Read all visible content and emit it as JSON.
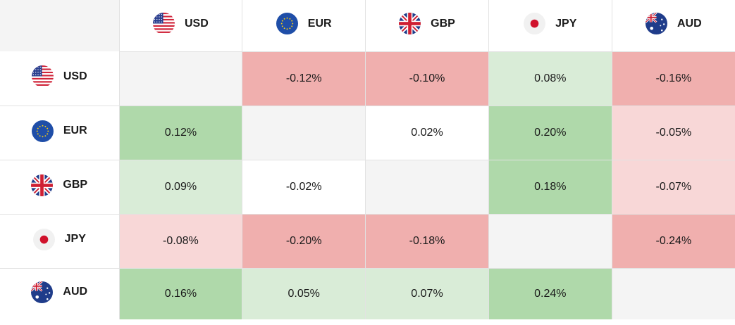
{
  "currencies": [
    {
      "code": "USD",
      "icon": "us-flag-icon"
    },
    {
      "code": "EUR",
      "icon": "eu-flag-icon"
    },
    {
      "code": "GBP",
      "icon": "uk-flag-icon"
    },
    {
      "code": "JPY",
      "icon": "japan-flag-icon"
    },
    {
      "code": "AUD",
      "icon": "australia-flag-icon"
    }
  ],
  "colors": {
    "empty": "#f4f4f4",
    "neutral": "#ffffff",
    "positive_light": "#d9ecd7",
    "positive_strong": "#afd9aa",
    "negative_light": "#f8d7d7",
    "negative_strong": "#f0afae"
  },
  "chart_data": {
    "type": "heatmap",
    "rows": [
      "USD",
      "EUR",
      "GBP",
      "JPY",
      "AUD"
    ],
    "columns": [
      "USD",
      "EUR",
      "GBP",
      "JPY",
      "AUD"
    ],
    "cells": [
      [
        "",
        "-0.12%",
        "-0.10%",
        "0.08%",
        "-0.16%"
      ],
      [
        "0.12%",
        "",
        "0.02%",
        "0.20%",
        "-0.05%"
      ],
      [
        "0.09%",
        "-0.02%",
        "",
        "0.18%",
        "-0.07%"
      ],
      [
        "-0.08%",
        "-0.20%",
        "-0.18%",
        "",
        "-0.24%"
      ],
      [
        "0.16%",
        "0.05%",
        "0.07%",
        "0.24%",
        ""
      ]
    ],
    "values": [
      [
        null,
        -0.12,
        -0.1,
        0.08,
        -0.16
      ],
      [
        0.12,
        null,
        0.02,
        0.2,
        -0.05
      ],
      [
        0.09,
        -0.02,
        null,
        0.18,
        -0.07
      ],
      [
        -0.08,
        -0.2,
        -0.18,
        null,
        -0.24
      ],
      [
        0.16,
        0.05,
        0.07,
        0.24,
        null
      ]
    ],
    "levels": [
      [
        "empty",
        "negative_strong",
        "negative_strong",
        "positive_light",
        "negative_strong"
      ],
      [
        "positive_strong",
        "empty",
        "neutral",
        "positive_strong",
        "negative_light"
      ],
      [
        "positive_light",
        "neutral",
        "empty",
        "positive_strong",
        "negative_light"
      ],
      [
        "negative_light",
        "negative_strong",
        "negative_strong",
        "empty",
        "negative_strong"
      ],
      [
        "positive_strong",
        "positive_light",
        "positive_light",
        "positive_strong",
        "empty"
      ]
    ]
  }
}
